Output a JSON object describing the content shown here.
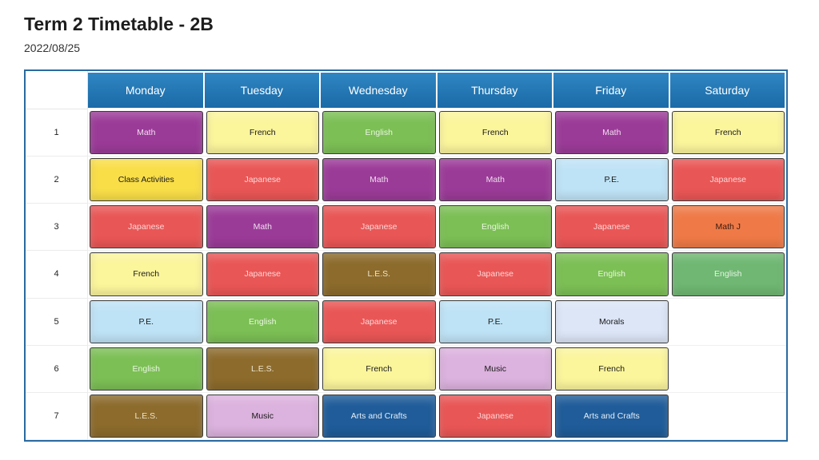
{
  "header": {
    "title": "Term 2 Timetable - 2B",
    "date": "2022/08/25"
  },
  "days": [
    "Monday",
    "Tuesday",
    "Wednesday",
    "Thursday",
    "Friday",
    "Saturday"
  ],
  "periods": [
    "1",
    "2",
    "3",
    "4",
    "5",
    "6",
    "7"
  ],
  "rows": [
    [
      "Math",
      "French",
      "English",
      "French",
      "Math",
      "French"
    ],
    [
      "Class Activities",
      "Japanese",
      "Math",
      "Math",
      "P.E.",
      "Japanese"
    ],
    [
      "Japanese",
      "Math",
      "Japanese",
      "English",
      "Japanese",
      "Math J"
    ],
    [
      "French",
      "Japanese",
      "L.E.S.",
      "Japanese",
      "English",
      "English"
    ],
    [
      "P.E.",
      "English",
      "Japanese",
      "P.E.",
      "Morals",
      ""
    ],
    [
      "English",
      "L.E.S.",
      "French",
      "Music",
      "French",
      ""
    ],
    [
      "L.E.S.",
      "Music",
      "Arts and Crafts",
      "Japanese",
      "Arts and Crafts",
      ""
    ]
  ],
  "subject_colors": {
    "Math": "#9b3b98",
    "French": "#fbf59c",
    "English": "#7cbf55",
    "Japanese": "#e95656",
    "Class Activities": "#f9de48",
    "P.E.": "#bfe3f6",
    "L.E.S.": "#8c6b2c",
    "Music": "#dcb2de",
    "Arts and Crafts": "#1f5c99",
    "Morals": "#dce6f7",
    "Math J": "#ef7a47",
    "header_blue": "#2a77b5"
  }
}
